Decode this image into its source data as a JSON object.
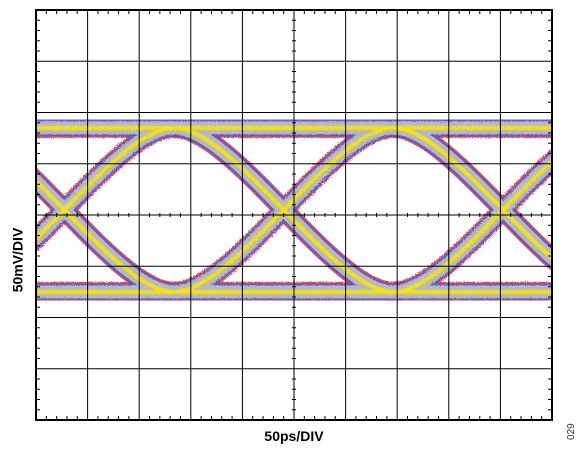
{
  "chart_data": {
    "type": "eye-diagram",
    "xlabel": "50ps/DIV",
    "ylabel": "50mV/DIV",
    "x_divisions": 10,
    "y_divisions": 8,
    "minor_ticks_per_division": 5,
    "unit_interval_divisions": 4.25,
    "first_crossing_division": 0.55,
    "high_level_division": 2.3,
    "low_level_division": 5.5,
    "crossing_level_division": 3.95,
    "figure_id": "029",
    "colors": {
      "background": "#ffffff",
      "grid": "#000000",
      "trace_core": "#b9b9b9",
      "trace_hot": "#f4e21a",
      "trace_edge_blue": "#5a5fb8",
      "trace_edge_red": "#cc2c5a"
    }
  }
}
